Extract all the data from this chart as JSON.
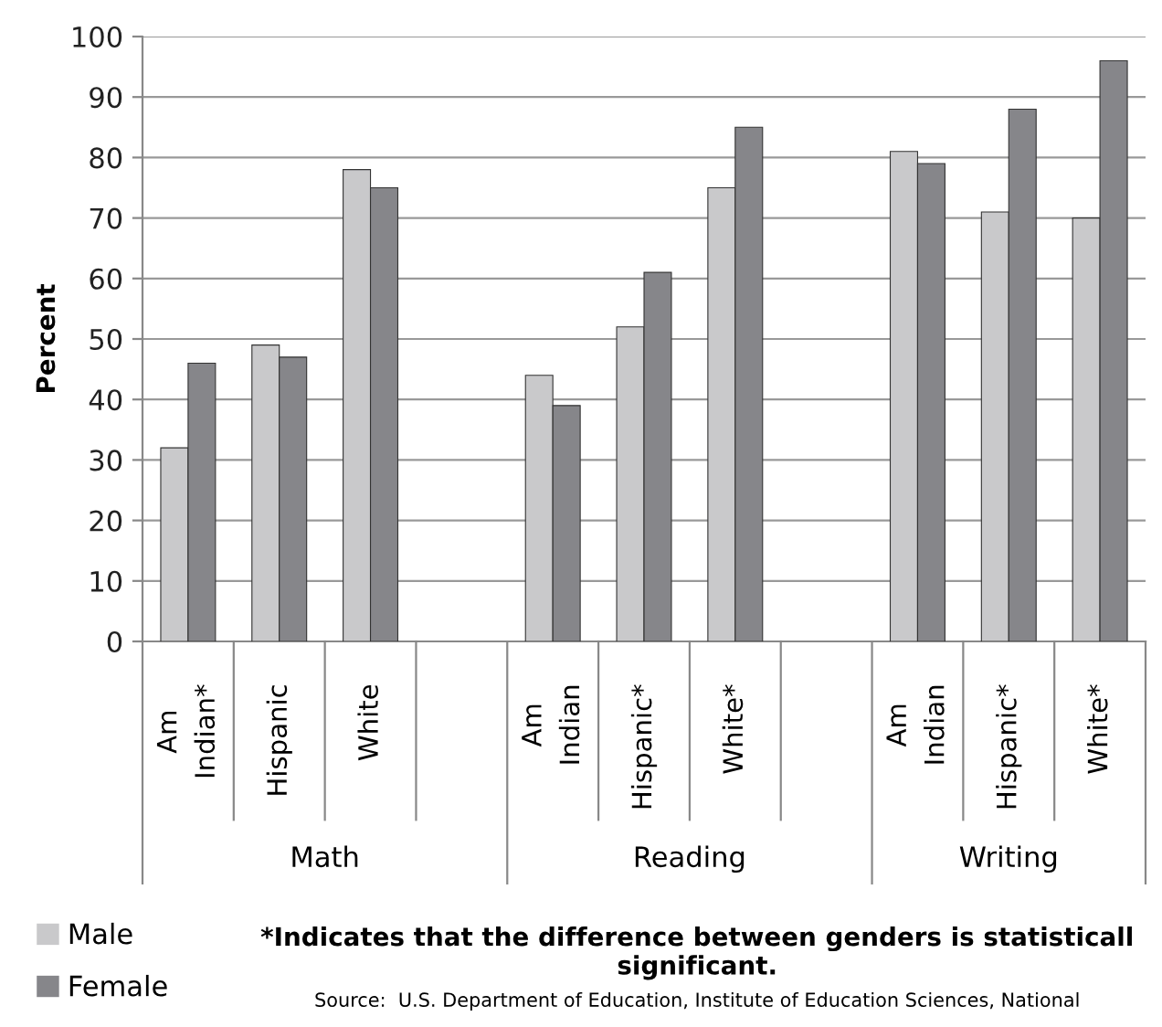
{
  "chart_data": {
    "type": "bar",
    "ylabel": "Percent",
    "categories": [
      "Am\nIndian*",
      "Hispanic",
      "White",
      null,
      "Am\nIndian",
      "Hispanic*",
      "White*",
      null,
      "Am\nIndian",
      "Hispanic*",
      "White*"
    ],
    "series": [
      {
        "name": "Male",
        "color": "#c9c9cb",
        "values": [
          32,
          49,
          78,
          null,
          44,
          52,
          75,
          null,
          81,
          71,
          70
        ]
      },
      {
        "name": "Female",
        "color": "#86868a",
        "values": [
          46,
          47,
          75,
          null,
          39,
          61,
          85,
          null,
          79,
          88,
          96
        ]
      }
    ],
    "ylim": [
      0,
      100
    ],
    "yticks": [
      0,
      10,
      20,
      30,
      40,
      50,
      60,
      70,
      80,
      90,
      100
    ],
    "grid": "y",
    "legend": "bottom left",
    "annotations": [
      "Math",
      "Reading",
      "Writing",
      "*Indicates that the difference between genders is statisticall significant.",
      "Source:  U.S. Department of Education, Institute of Education Sciences, National"
    ]
  }
}
